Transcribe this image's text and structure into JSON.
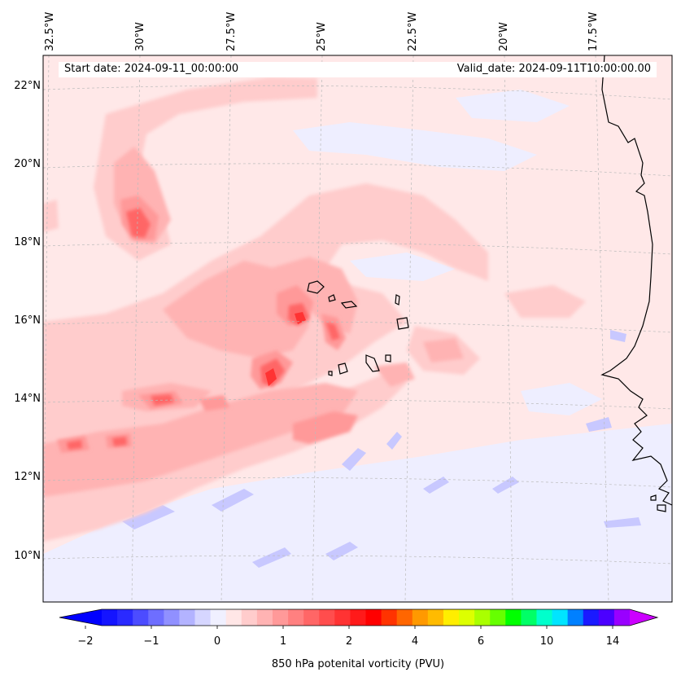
{
  "header": {
    "start_date": "Start date: 2024-09-11_00:00:00",
    "valid_date": "Valid_date: 2024-09-11T10:00:00.00"
  },
  "axes": {
    "lon_labels": [
      "32.5°W",
      "30°W",
      "27.5°W",
      "25°W",
      "22.5°W",
      "20°W",
      "17.5°W"
    ],
    "lat_labels": [
      "22°N",
      "20°N",
      "18°N",
      "16°N",
      "14°N",
      "12°N",
      "10°N"
    ]
  },
  "colorbar": {
    "title": "850 hPa potenital vorticity (PVU)",
    "tick_labels": [
      "−2",
      "−1",
      "0",
      "1",
      "2",
      "4",
      "6",
      "10",
      "14"
    ],
    "colors": [
      "#1414ff",
      "#2a2aff",
      "#4c4cff",
      "#6e6eff",
      "#9090ff",
      "#b3b3ff",
      "#d6d6ff",
      "#f0f0ff",
      "#ffe6e6",
      "#ffcccc",
      "#ffb3b3",
      "#ff9999",
      "#ff8080",
      "#ff6666",
      "#ff4d4d",
      "#ff3333",
      "#ff1a1a",
      "#ff0000",
      "#ff3300",
      "#ff6600",
      "#ff9900",
      "#ffbb00",
      "#ffee00",
      "#ddff00",
      "#aaff00",
      "#66ff00",
      "#00ff00",
      "#00ff66",
      "#00ffcc",
      "#00e5ff",
      "#0080ff",
      "#1a1aff",
      "#4b00ff",
      "#9900ff"
    ],
    "extend_low_color": "#0000ff",
    "extend_high_color": "#cc00ff"
  },
  "map": {
    "background_color": "#ffe8e8",
    "coastline_color": "#000000"
  }
}
